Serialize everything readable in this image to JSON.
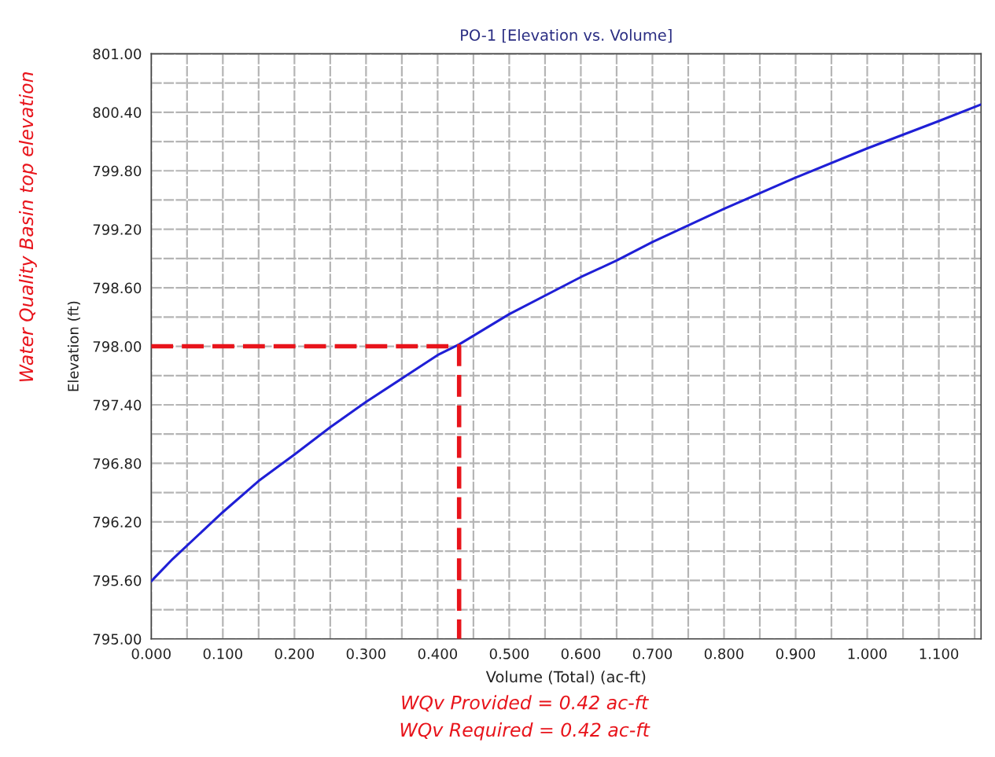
{
  "chart_data": {
    "type": "line",
    "title": "PO-1 [Elevation vs. Volume]",
    "xlabel": "Volume (Total) (ac-ft)",
    "ylabel": "Elevation (ft)",
    "series": [
      {
        "color": "#1f1fd6",
        "line_style": "solid",
        "x": [
          0,
          0.005,
          0.03,
          0.1,
          0.15,
          0.2,
          0.25,
          0.3,
          0.35,
          0.4,
          0.43,
          0.5,
          0.6,
          0.65,
          0.7,
          0.8,
          0.9,
          1.0,
          1.1,
          1.159
        ],
        "values": [
          795.59,
          795.63,
          795.82,
          796.3,
          796.62,
          796.89,
          797.17,
          797.43,
          797.67,
          797.91,
          798.02,
          798.33,
          798.71,
          798.88,
          799.07,
          799.41,
          799.73,
          800.03,
          800.31,
          800.48
        ]
      },
      {
        "color": "#e8141b",
        "line_style": "dashed",
        "x": [
          0,
          0.43,
          0.43
        ],
        "values": [
          798.0,
          798.0,
          795.0
        ]
      }
    ],
    "xlim": [
      0,
      1.159
    ],
    "ylim": [
      795.0,
      801.0
    ],
    "xticks": [
      {
        "value": 0,
        "label": "0.000"
      },
      {
        "value": 0.1,
        "label": "0.100"
      },
      {
        "value": 0.2,
        "label": "0.200"
      },
      {
        "value": 0.3,
        "label": "0.300"
      },
      {
        "value": 0.4,
        "label": "0.400"
      },
      {
        "value": 0.5,
        "label": "0.500"
      },
      {
        "value": 0.6,
        "label": "0.600"
      },
      {
        "value": 0.7,
        "label": "0.700"
      },
      {
        "value": 0.8,
        "label": "0.800"
      },
      {
        "value": 0.9,
        "label": "0.900"
      },
      {
        "value": 1.0,
        "label": "1.000"
      },
      {
        "value": 1.1,
        "label": "1.100"
      }
    ],
    "yticks": [
      {
        "value": 795.0,
        "label": "795.00"
      },
      {
        "value": 795.6,
        "label": "795.60"
      },
      {
        "value": 796.2,
        "label": "796.20"
      },
      {
        "value": 796.8,
        "label": "796.80"
      },
      {
        "value": 797.4,
        "label": "797.40"
      },
      {
        "value": 798.0,
        "label": "798.00"
      },
      {
        "value": 798.6,
        "label": "798.60"
      },
      {
        "value": 799.2,
        "label": "799.20"
      },
      {
        "value": 799.8,
        "label": "799.80"
      },
      {
        "value": 800.4,
        "label": "800.40"
      },
      {
        "value": 801.0,
        "label": "801.00"
      }
    ],
    "grid": true,
    "legend": false,
    "annotations": [
      "Water Quality Basin top elevation",
      "WQv Provided = 0.42 ac-ft",
      "WQv Required = 0.42 ac-ft"
    ]
  }
}
